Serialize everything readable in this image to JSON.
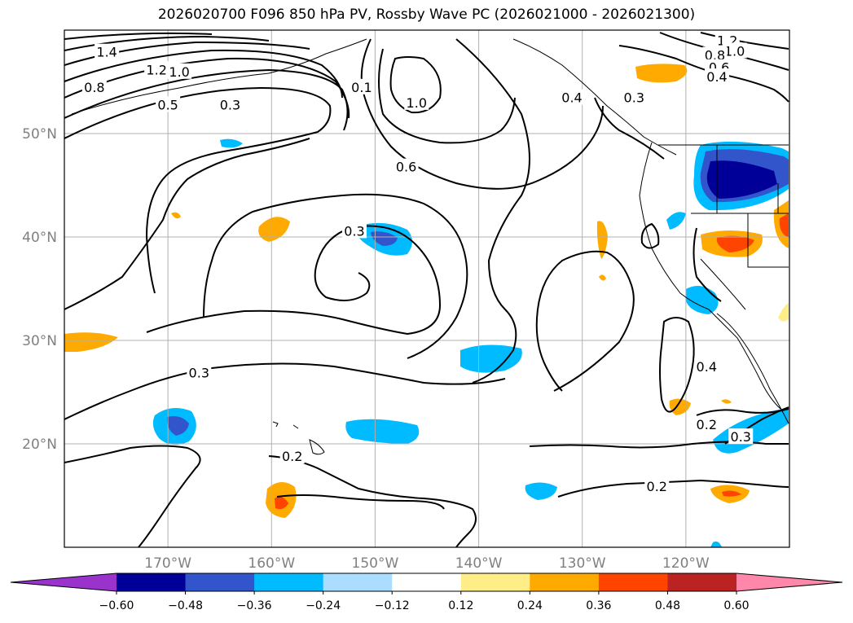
{
  "title": "2026020700 F096 850 hPa PV, Rossby Wave PC (2026021000 - 2026021300)",
  "map": {
    "lon_range": [
      -180,
      -110
    ],
    "lat_range": [
      10,
      60
    ],
    "lat_ticks": [
      {
        "value": 50,
        "label": "50°N"
      },
      {
        "value": 40,
        "label": "40°N"
      },
      {
        "value": 30,
        "label": "30°N"
      },
      {
        "value": 20,
        "label": "20°N"
      }
    ],
    "lon_ticks": [
      {
        "value": -170,
        "label": "170°W"
      },
      {
        "value": -160,
        "label": "160°W"
      },
      {
        "value": -150,
        "label": "150°W"
      },
      {
        "value": -140,
        "label": "140°W"
      },
      {
        "value": -130,
        "label": "130°W"
      },
      {
        "value": -120,
        "label": "120°W"
      }
    ],
    "gridlines": true,
    "tick_color": "#808080",
    "pv_contour_labels": [
      {
        "text": "1.4",
        "lon": -175.9,
        "lat": 57.9
      },
      {
        "text": "1.2",
        "lon": -171.1,
        "lat": 56.2
      },
      {
        "text": "1.0",
        "lon": -168.9,
        "lat": 56.0
      },
      {
        "text": "0.8",
        "lon": -177.1,
        "lat": 54.5
      },
      {
        "text": "0.5",
        "lon": -170.0,
        "lat": 52.8
      },
      {
        "text": "0.3",
        "lon": -164.0,
        "lat": 52.8
      },
      {
        "text": "0.1",
        "lon": -151.3,
        "lat": 54.5
      },
      {
        "text": "1.0",
        "lon": -146.0,
        "lat": 53.0
      },
      {
        "text": "0.4",
        "lon": -131.0,
        "lat": 53.5
      },
      {
        "text": "0.3",
        "lon": -125.0,
        "lat": 53.5
      },
      {
        "text": "1.2",
        "lon": -116.0,
        "lat": 59.0
      },
      {
        "text": "1.0",
        "lon": -115.3,
        "lat": 58.0
      },
      {
        "text": "0.8",
        "lon": -117.2,
        "lat": 57.6
      },
      {
        "text": "0.6",
        "lon": -116.8,
        "lat": 56.4
      },
      {
        "text": "0.4",
        "lon": -117.0,
        "lat": 55.5
      },
      {
        "text": "0.6",
        "lon": -147.0,
        "lat": 46.8
      },
      {
        "text": "0.3",
        "lon": -152.0,
        "lat": 40.6
      },
      {
        "text": "0.3",
        "lon": -167.0,
        "lat": 26.9
      },
      {
        "text": "0.4",
        "lon": -118.0,
        "lat": 27.5
      },
      {
        "text": "0.2",
        "lon": -118.0,
        "lat": 21.9
      },
      {
        "text": "0.3",
        "lon": -114.7,
        "lat": 20.7
      },
      {
        "text": "0.2",
        "lon": -158.0,
        "lat": 18.8
      },
      {
        "text": "0.2",
        "lon": -122.8,
        "lat": 15.9
      }
    ]
  },
  "colorbar": {
    "levels": [
      -0.6,
      -0.48,
      -0.36,
      -0.24,
      -0.12,
      0.12,
      0.24,
      0.36,
      0.48,
      0.6
    ],
    "labels": [
      "−0.60",
      "−0.48",
      "−0.36",
      "−0.24",
      "−0.12",
      "0.12",
      "0.24",
      "0.36",
      "0.48",
      "0.60"
    ],
    "colors": [
      "#9933cc",
      "#000099",
      "#3355cc",
      "#00bbff",
      "#aaddff",
      "#ffffff",
      "#ffee88",
      "#ffaa00",
      "#ff4400",
      "#bb2222",
      "#ff88aa"
    ],
    "extend": "both"
  }
}
